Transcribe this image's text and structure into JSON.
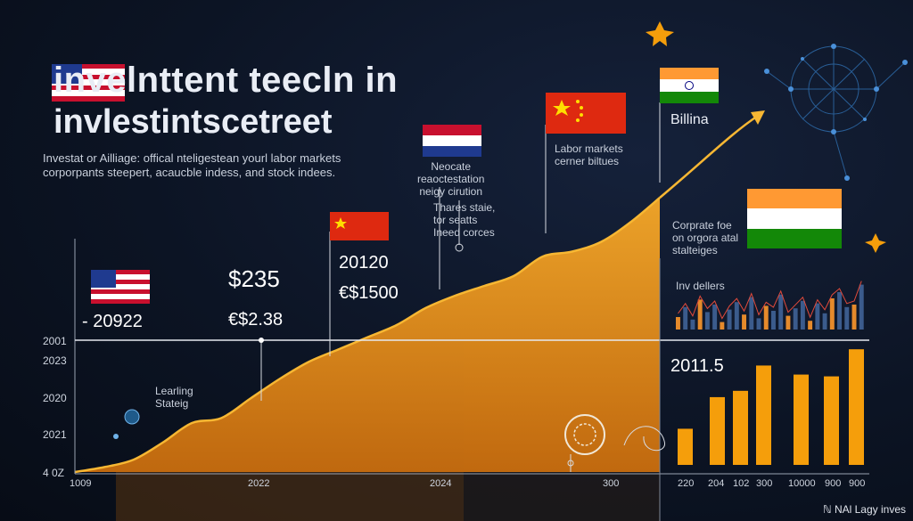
{
  "header": {
    "title_line1": "invelnttent teecln in",
    "title_line2": "invlestintscetreet",
    "subtitle": "Investat or Ailliage: offical nteligestean yourl labor markets corporpants steepert, acaucble indess, and stock indees."
  },
  "annotations": {
    "leading_strategy": [
      "Learling",
      "Stateig"
    ],
    "negotiate": [
      "Neocate",
      "reaoctestation",
      "neigy cirution"
    ],
    "these_state": [
      "Thares staie,",
      "tor seatts",
      "Ineed corces"
    ],
    "labor_markets": [
      "Labor markets",
      "cerner biltues"
    ],
    "billina": "Billina",
    "corporate": [
      "Corprate foe",
      "on orgora atal",
      "stalteiges"
    ],
    "inv_dellers": "Inv dellers"
  },
  "callouts": {
    "year_2022": "- 20922",
    "amount_235": "$235",
    "amount_238": "€$2.38",
    "value_20120": "20120",
    "amount_1500": "€$1500",
    "value_2011_5": "2011.5"
  },
  "brand": "ℕ NAl Lagy inves",
  "colors": {
    "area": "#f5a623",
    "line": "#f7b733",
    "bars": "#f59e0b",
    "background": "#0c1424"
  },
  "chart_data": [
    {
      "type": "area",
      "title": "",
      "xlabel": "",
      "ylabel": "",
      "y_tick_labels": [
        "2001",
        "2023",
        "2020",
        "2021",
        "4 0Z"
      ],
      "x_tick_labels": [
        "1009",
        "2022",
        "2024",
        "300"
      ],
      "x": [
        0,
        5,
        10,
        15,
        20,
        25,
        30,
        35,
        40,
        45,
        50,
        55,
        60,
        65,
        70,
        75,
        80,
        85,
        90,
        95,
        100
      ],
      "values": [
        0,
        2,
        5,
        12,
        20,
        22,
        30,
        38,
        45,
        50,
        55,
        60,
        67,
        72,
        76,
        80,
        88,
        90,
        94,
        102,
        112
      ],
      "ylim": [
        0,
        120
      ],
      "grid": false
    },
    {
      "type": "bar",
      "categories": [
        "220",
        "204",
        "102",
        "300",
        "10000",
        "900",
        "900"
      ],
      "values": [
        40,
        75,
        82,
        110,
        100,
        98,
        128
      ],
      "ylim": [
        0,
        140
      ],
      "grid": false
    },
    {
      "type": "bar",
      "title": "Inv dellers",
      "series_count": 26,
      "values": [
        10,
        18,
        8,
        24,
        14,
        20,
        6,
        16,
        22,
        12,
        26,
        9,
        19,
        15,
        28,
        11,
        17,
        23,
        7,
        21,
        13,
        25,
        30,
        18,
        20,
        36
      ],
      "ylim": [
        0,
        40
      ]
    }
  ]
}
